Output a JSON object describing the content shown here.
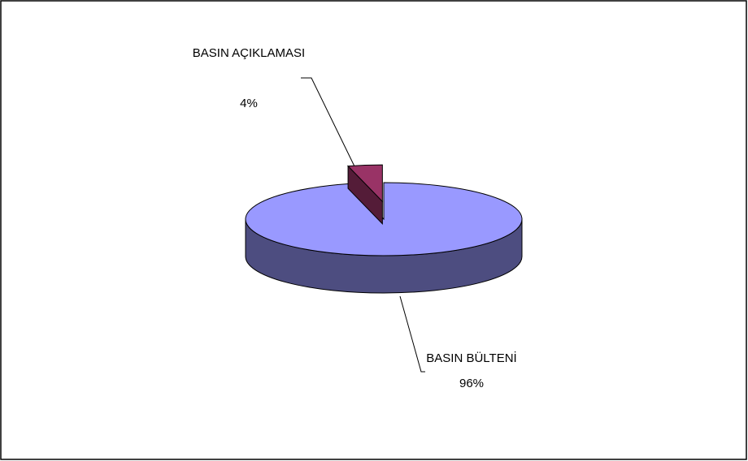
{
  "chart_data": {
    "type": "pie",
    "categories": [
      "BASIN BÜLTENİ",
      "BASIN AÇIKLAMASI"
    ],
    "values": [
      96,
      4
    ],
    "value_labels": [
      "96%",
      "4%"
    ],
    "colors": [
      "#9999ff",
      "#993366"
    ],
    "exploded": [
      false,
      true
    ]
  }
}
